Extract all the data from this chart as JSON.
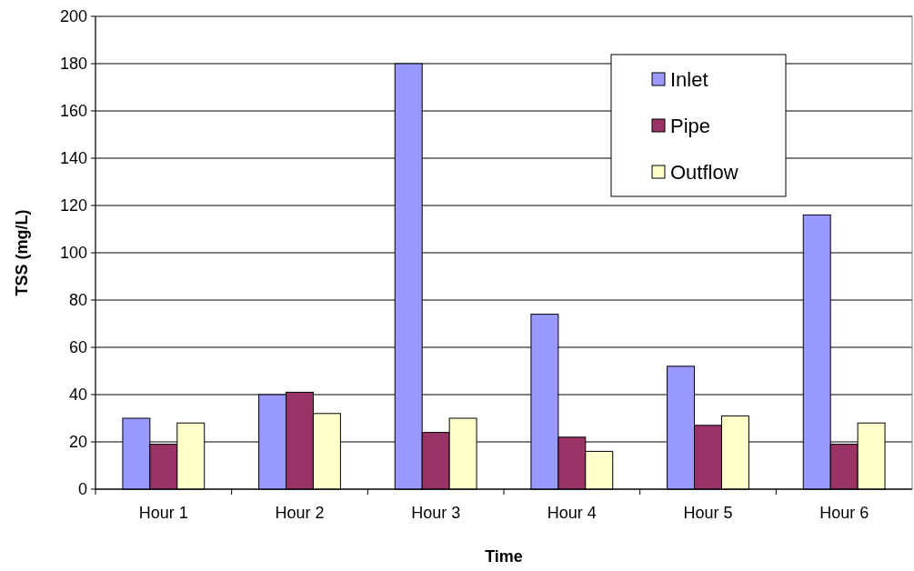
{
  "chart_data": {
    "type": "bar",
    "xlabel": "Time",
    "ylabel": "TSS (mg/L)",
    "categories": [
      "Hour 1",
      "Hour 2",
      "Hour 3",
      "Hour 4",
      "Hour 5",
      "Hour 6"
    ],
    "series": [
      {
        "name": "Inlet",
        "color": "#9999ff",
        "values": [
          30,
          40,
          180,
          74,
          52,
          116
        ]
      },
      {
        "name": "Pipe",
        "color": "#993366",
        "values": [
          19,
          41,
          24,
          22,
          27,
          19
        ]
      },
      {
        "name": "Outflow",
        "color": "#ffffcc",
        "values": [
          28,
          32,
          30,
          16,
          31,
          28
        ]
      }
    ],
    "ylim": [
      0,
      200
    ],
    "yticks": [
      0,
      20,
      40,
      60,
      80,
      100,
      120,
      140,
      160,
      180,
      200
    ],
    "grid": "y",
    "legend": "top right"
  }
}
